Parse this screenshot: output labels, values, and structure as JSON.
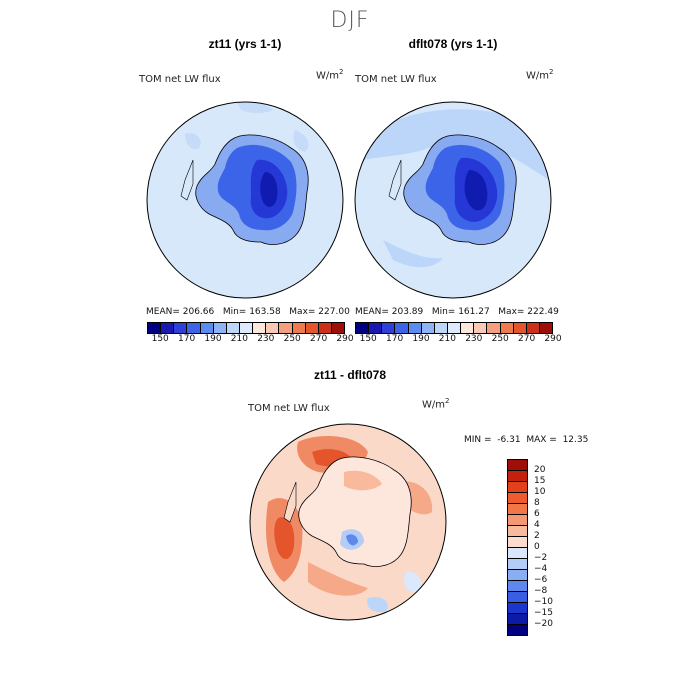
{
  "title": "DJF",
  "panels": [
    {
      "title": "zt11 (yrs 1-1)",
      "variable": "TOM net LW flux",
      "units_base": "W/m",
      "units_exp": "2",
      "stats": {
        "mean": "MEAN= 206.66",
        "min": "Min= 163.58",
        "max": "Max= 227.00"
      }
    },
    {
      "title": "dflt078 (yrs 1-1)",
      "variable": "TOM net LW flux",
      "units_base": "W/m",
      "units_exp": "2",
      "stats": {
        "mean": "MEAN= 203.89",
        "min": "Min= 161.27",
        "max": "Max= 222.49"
      }
    }
  ],
  "colorbar_top": {
    "ticks": [
      "150",
      "170",
      "190",
      "210",
      "230",
      "250",
      "270",
      "290"
    ],
    "colors": [
      "#000080",
      "#1a1ab3",
      "#2f3fd8",
      "#3b64e8",
      "#5b8cf0",
      "#8fb4f5",
      "#bcd6fa",
      "#dde9fc",
      "#fde6dc",
      "#f9c9b3",
      "#f4a07f",
      "#ef7a50",
      "#e4552b",
      "#cc3018",
      "#9e0f08"
    ]
  },
  "diff_panel": {
    "title": "zt11 - dflt078",
    "variable": "TOM net LW flux",
    "units_base": "W/m",
    "units_exp": "2",
    "min_label": "MIN =",
    "min_value": "-6.31",
    "max_label": "MAX =",
    "max_value": "12.35"
  },
  "colorbar_diff": {
    "ticks": [
      "20",
      "15",
      "10",
      "8",
      "6",
      "4",
      "2",
      "0",
      "−2",
      "−4",
      "−6",
      "−8",
      "−10",
      "−15",
      "−20"
    ],
    "colors": [
      "#9e0f08",
      "#c4200f",
      "#e4401c",
      "#ef5a2e",
      "#f37649",
      "#f59873",
      "#f8b99c",
      "#fcdccc",
      "#d9e6fb",
      "#b4cdf7",
      "#8aaef2",
      "#5f88ec",
      "#3a5ee3",
      "#1c36cc",
      "#0c1aa8",
      "#000080"
    ]
  },
  "colors": {
    "ocean_light": "#d8e8fb",
    "antarctic_edge": "#88aaf0",
    "antarctic_inner": "#3b64e8",
    "antarctic_core": "#1420c0",
    "diff_base": "#fbd9c8",
    "diff_warm": "#f08a65"
  }
}
